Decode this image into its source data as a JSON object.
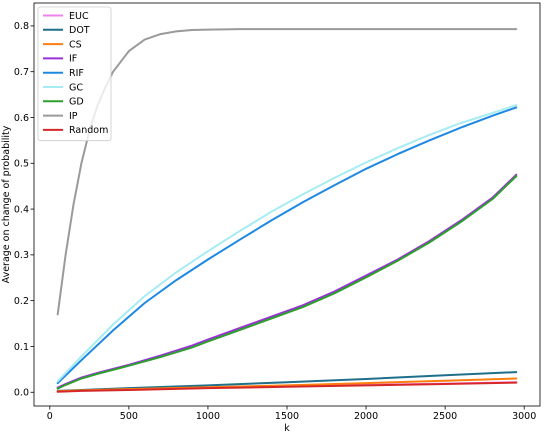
{
  "chart_data": {
    "type": "line",
    "title": "",
    "xlabel": "k",
    "ylabel": "Average on change of probability",
    "xlim": [
      -100,
      3100
    ],
    "ylim": [
      -0.03,
      0.85
    ],
    "xticks": [
      0,
      500,
      1000,
      1500,
      2000,
      2500,
      3000
    ],
    "yticks": [
      0.0,
      0.1,
      0.2,
      0.3,
      0.4,
      0.5,
      0.6,
      0.7,
      0.8
    ],
    "xtick_labels": [
      "0",
      "500",
      "1000",
      "1500",
      "2000",
      "2500",
      "3000"
    ],
    "ytick_labels": [
      "0.0",
      "0.1",
      "0.2",
      "0.3",
      "0.4",
      "0.5",
      "0.6",
      "0.7",
      "0.8"
    ],
    "grid": false,
    "legend_position": "top-left",
    "series": [
      {
        "name": "EUC",
        "color": "#ee82ee",
        "x": [
          50,
          200,
          500,
          1000,
          1500,
          2000,
          2500,
          2950
        ],
        "y": [
          0.002,
          0.004,
          0.007,
          0.01,
          0.013,
          0.016,
          0.019,
          0.022
        ]
      },
      {
        "name": "DOT",
        "color": "#1f6f8b",
        "x": [
          50,
          200,
          500,
          1000,
          1500,
          2000,
          2500,
          2950
        ],
        "y": [
          0.003,
          0.005,
          0.009,
          0.015,
          0.022,
          0.029,
          0.037,
          0.044
        ]
      },
      {
        "name": "CS",
        "color": "#ff7f0e",
        "x": [
          50,
          200,
          500,
          1000,
          1500,
          2000,
          2500,
          2950
        ],
        "y": [
          0.002,
          0.004,
          0.007,
          0.011,
          0.015,
          0.02,
          0.025,
          0.03
        ]
      },
      {
        "name": "IF",
        "color": "#9b30d9",
        "x": [
          50,
          100,
          200,
          300,
          500,
          700,
          900,
          1000,
          1200,
          1400,
          1600,
          1800,
          2000,
          2200,
          2400,
          2600,
          2800,
          2950
        ],
        "y": [
          0.01,
          0.018,
          0.032,
          0.042,
          0.06,
          0.08,
          0.102,
          0.115,
          0.14,
          0.165,
          0.19,
          0.22,
          0.255,
          0.29,
          0.33,
          0.375,
          0.425,
          0.475
        ]
      },
      {
        "name": "RIF",
        "color": "#1e88e5",
        "x": [
          50,
          200,
          400,
          600,
          800,
          1000,
          1200,
          1400,
          1600,
          1800,
          2000,
          2200,
          2400,
          2600,
          2800,
          2950
        ],
        "y": [
          0.02,
          0.07,
          0.135,
          0.195,
          0.245,
          0.29,
          0.333,
          0.375,
          0.415,
          0.452,
          0.488,
          0.52,
          0.55,
          0.578,
          0.604,
          0.622
        ]
      },
      {
        "name": "GC",
        "color": "#a6ecf2",
        "x": [
          50,
          200,
          400,
          600,
          800,
          1000,
          1200,
          1400,
          1600,
          1800,
          2000,
          2200,
          2400,
          2600,
          2800,
          2950
        ],
        "y": [
          0.024,
          0.078,
          0.148,
          0.21,
          0.262,
          0.308,
          0.352,
          0.394,
          0.432,
          0.468,
          0.502,
          0.533,
          0.562,
          0.588,
          0.61,
          0.627
        ]
      },
      {
        "name": "GD",
        "color": "#2ca02c",
        "x": [
          50,
          100,
          200,
          300,
          500,
          700,
          900,
          1000,
          1200,
          1400,
          1600,
          1800,
          2000,
          2200,
          2400,
          2600,
          2800,
          2950
        ],
        "y": [
          0.008,
          0.016,
          0.03,
          0.04,
          0.058,
          0.077,
          0.098,
          0.111,
          0.136,
          0.161,
          0.186,
          0.216,
          0.251,
          0.287,
          0.327,
          0.372,
          0.422,
          0.472
        ]
      },
      {
        "name": "IP",
        "color": "#9a9a9a",
        "x": [
          50,
          100,
          150,
          200,
          250,
          300,
          350,
          400,
          500,
          600,
          700,
          800,
          900,
          1000,
          1200,
          1500,
          2000,
          2500,
          2950
        ],
        "y": [
          0.17,
          0.3,
          0.41,
          0.5,
          0.57,
          0.625,
          0.665,
          0.7,
          0.745,
          0.77,
          0.782,
          0.788,
          0.791,
          0.792,
          0.793,
          0.793,
          0.793,
          0.793,
          0.793
        ]
      },
      {
        "name": "Random",
        "color": "#d62728",
        "x": [
          50,
          200,
          500,
          1000,
          1500,
          2000,
          2500,
          2950
        ],
        "y": [
          0.001,
          0.003,
          0.005,
          0.009,
          0.012,
          0.015,
          0.018,
          0.021
        ]
      }
    ]
  }
}
